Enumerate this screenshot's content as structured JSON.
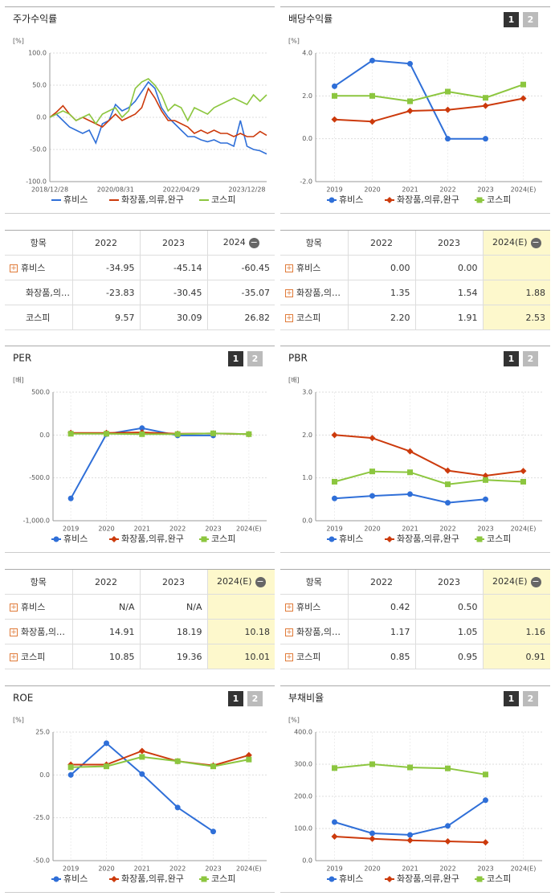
{
  "chart_data": [
    {
      "type": "line",
      "title": "주가수익률",
      "unit": "[%]",
      "grid": true,
      "categories": [
        "2018/12/28",
        null,
        null,
        null,
        null,
        null,
        null,
        null,
        null,
        null,
        "2020/08/31",
        null,
        null,
        null,
        null,
        null,
        null,
        null,
        null,
        null,
        "2022/04/29",
        null,
        null,
        null,
        null,
        null,
        null,
        null,
        null,
        null,
        "2023/12/28",
        null,
        null,
        null
      ],
      "ylim": [
        -100,
        100
      ],
      "yticks": [
        {
          "value": -100,
          "label": "-100.0"
        },
        {
          "value": -50,
          "label": "-50.0"
        },
        {
          "value": 0,
          "label": "0.0"
        },
        {
          "value": 50,
          "label": "50.0"
        },
        {
          "value": 100,
          "label": "100.0"
        }
      ],
      "series": [
        {
          "name": "휴비스",
          "color": "#2f6fd8",
          "values": [
            0,
            5,
            -5,
            -15,
            -20,
            -25,
            -20,
            -40,
            -10,
            -5,
            20,
            10,
            15,
            25,
            40,
            55,
            45,
            15,
            0,
            -10,
            -20,
            -30,
            -30,
            -35,
            -38,
            -35,
            -40,
            -40,
            -45,
            -5,
            -45,
            -50,
            -52,
            -57
          ]
        },
        {
          "name": "화장품,의류,완구",
          "color": "#cc3a0c",
          "values": [
            0,
            8,
            18,
            5,
            -5,
            0,
            -5,
            -10,
            -15,
            -5,
            5,
            -5,
            0,
            5,
            15,
            45,
            30,
            10,
            -5,
            -5,
            -10,
            -15,
            -25,
            -20,
            -25,
            -20,
            -25,
            -25,
            -30,
            -25,
            -30,
            -30,
            -22,
            -28
          ]
        },
        {
          "name": "코스피",
          "color": "#8cc63f",
          "values": [
            0,
            5,
            10,
            5,
            -5,
            0,
            5,
            -10,
            5,
            10,
            15,
            0,
            10,
            45,
            55,
            60,
            50,
            35,
            10,
            20,
            15,
            -5,
            15,
            10,
            5,
            15,
            20,
            25,
            30,
            25,
            20,
            35,
            25,
            35
          ]
        }
      ]
    },
    {
      "type": "line-marker",
      "title": "배당수익률",
      "unit": "[%]",
      "grid": true,
      "buttons": [
        "1",
        "2"
      ],
      "categories": [
        "2019",
        "2020",
        "2021",
        "2022",
        "2023",
        "2024(E)"
      ],
      "ylim": [
        -2,
        4
      ],
      "yticks": [
        {
          "value": -2,
          "label": "-2.0"
        },
        {
          "value": 0,
          "label": "0.0"
        },
        {
          "value": 2,
          "label": "2.0"
        },
        {
          "value": 4,
          "label": "4.0"
        }
      ],
      "series": [
        {
          "name": "휴비스",
          "color": "#2f6fd8",
          "values": [
            2.45,
            3.65,
            3.5,
            0,
            0,
            null
          ]
        },
        {
          "name": "화장품,의류,완구",
          "color": "#cc3a0c",
          "values": [
            0.9,
            0.8,
            1.3,
            1.35,
            1.54,
            1.88
          ]
        },
        {
          "name": "코스피",
          "color": "#8cc63f",
          "values": [
            2.0,
            2.0,
            1.75,
            2.2,
            1.91,
            2.53
          ]
        }
      ]
    },
    {
      "type": "line-marker",
      "title": "PER",
      "unit": "[배]",
      "grid": true,
      "buttons": [
        "1",
        "2"
      ],
      "categories": [
        "2019",
        "2020",
        "2021",
        "2022",
        "2023",
        "2024(E)"
      ],
      "ylim": [
        -1000,
        500
      ],
      "yticks": [
        {
          "value": -1000,
          "label": "-1,000.0"
        },
        {
          "value": -500,
          "label": "-500.0"
        },
        {
          "value": 0,
          "label": "0.0"
        },
        {
          "value": 500,
          "label": "500.0"
        }
      ],
      "series": [
        {
          "name": "휴비스",
          "color": "#2f6fd8",
          "values": [
            -740,
            10,
            80,
            -5,
            -5,
            null
          ]
        },
        {
          "name": "화장품,의류,완구",
          "color": "#cc3a0c",
          "values": [
            25,
            25,
            30,
            14.91,
            18.19,
            10.18
          ]
        },
        {
          "name": "코스피",
          "color": "#8cc63f",
          "values": [
            15,
            15,
            10,
            10.85,
            19.36,
            10.01
          ]
        }
      ]
    },
    {
      "type": "line-marker",
      "title": "PBR",
      "unit": "[배]",
      "grid": true,
      "buttons": [
        "1",
        "2"
      ],
      "categories": [
        "2019",
        "2020",
        "2021",
        "2022",
        "2023",
        "2024(E)"
      ],
      "ylim": [
        0,
        3
      ],
      "yticks": [
        {
          "value": 0,
          "label": "0.0"
        },
        {
          "value": 1,
          "label": "1.0"
        },
        {
          "value": 2,
          "label": "2.0"
        },
        {
          "value": 3,
          "label": "3.0"
        }
      ],
      "series": [
        {
          "name": "휴비스",
          "color": "#2f6fd8",
          "values": [
            0.52,
            0.58,
            0.62,
            0.42,
            0.5,
            null
          ]
        },
        {
          "name": "화장품,의류,완구",
          "color": "#cc3a0c",
          "values": [
            2.0,
            1.93,
            1.62,
            1.17,
            1.05,
            1.16
          ]
        },
        {
          "name": "코스피",
          "color": "#8cc63f",
          "values": [
            0.91,
            1.15,
            1.13,
            0.85,
            0.95,
            0.91
          ]
        }
      ]
    },
    {
      "type": "line-marker",
      "title": "ROE",
      "unit": "[%]",
      "grid": true,
      "buttons": [
        "1",
        "2"
      ],
      "categories": [
        "2019",
        "2020",
        "2021",
        "2022",
        "2023",
        "2024(E)"
      ],
      "ylim": [
        -50,
        25
      ],
      "yticks": [
        {
          "value": -50,
          "label": "-50.0"
        },
        {
          "value": -25,
          "label": "-25.0"
        },
        {
          "value": 0,
          "label": "0.0"
        },
        {
          "value": 25,
          "label": "25.0"
        }
      ],
      "series": [
        {
          "name": "휴비스",
          "color": "#2f6fd8",
          "values": [
            0,
            18.5,
            0.5,
            -19,
            -33,
            null
          ]
        },
        {
          "name": "화장품,의류,완구",
          "color": "#cc3a0c",
          "values": [
            6,
            6,
            14,
            8,
            5.5,
            11.5
          ]
        },
        {
          "name": "코스피",
          "color": "#8cc63f",
          "values": [
            4.5,
            5,
            10.5,
            8,
            5,
            9
          ]
        }
      ]
    },
    {
      "type": "line-marker",
      "title": "부채비율",
      "unit": "[%]",
      "grid": true,
      "buttons": [
        "1",
        "2"
      ],
      "categories": [
        "2019",
        "2020",
        "2021",
        "2022",
        "2023",
        "2024(E)"
      ],
      "ylim": [
        0,
        400
      ],
      "yticks": [
        {
          "value": 0,
          "label": "0.0"
        },
        {
          "value": 100,
          "label": "100.0"
        },
        {
          "value": 200,
          "label": "200.0"
        },
        {
          "value": 300,
          "label": "300.0"
        },
        {
          "value": 400,
          "label": "400.0"
        }
      ],
      "series": [
        {
          "name": "휴비스",
          "color": "#2f6fd8",
          "values": [
            120,
            85,
            80,
            108,
            188,
            null
          ]
        },
        {
          "name": "화장품,의류,완구",
          "color": "#cc3a0c",
          "values": [
            75,
            68,
            63,
            60,
            57,
            null
          ]
        },
        {
          "name": "코스피",
          "color": "#8cc63f",
          "values": [
            288,
            300,
            290,
            287,
            268,
            null
          ]
        }
      ]
    }
  ],
  "tables": [
    {
      "header": [
        "항목",
        "2022",
        "2023",
        "2024"
      ],
      "rows": [
        [
          "휴비스",
          "-34.95",
          "-45.14",
          "-60.45"
        ],
        [
          "화장품,의…",
          "-23.83",
          "-30.45",
          "-35.07"
        ],
        [
          "코스피",
          "9.57",
          "30.09",
          "26.82"
        ]
      ]
    },
    {
      "header": [
        "항목",
        "2022",
        "2023",
        "2024(E)"
      ],
      "rows": [
        [
          "휴비스",
          "0.00",
          "0.00",
          ""
        ],
        [
          "화장품,의…",
          "1.35",
          "1.54",
          "1.88"
        ],
        [
          "코스피",
          "2.20",
          "1.91",
          "2.53"
        ]
      ]
    },
    {
      "header": [
        "항목",
        "2022",
        "2023",
        "2024(E)"
      ],
      "rows": [
        [
          "휴비스",
          "N/A",
          "N/A",
          ""
        ],
        [
          "화장품,의…",
          "14.91",
          "18.19",
          "10.18"
        ],
        [
          "코스피",
          "10.85",
          "19.36",
          "10.01"
        ]
      ]
    },
    {
      "header": [
        "항목",
        "2022",
        "2023",
        "2024(E)"
      ],
      "rows": [
        [
          "휴비스",
          "0.42",
          "0.50",
          ""
        ],
        [
          "화장품,의…",
          "1.17",
          "1.05",
          "1.16"
        ],
        [
          "코스피",
          "0.85",
          "0.95",
          "0.91"
        ]
      ]
    }
  ]
}
